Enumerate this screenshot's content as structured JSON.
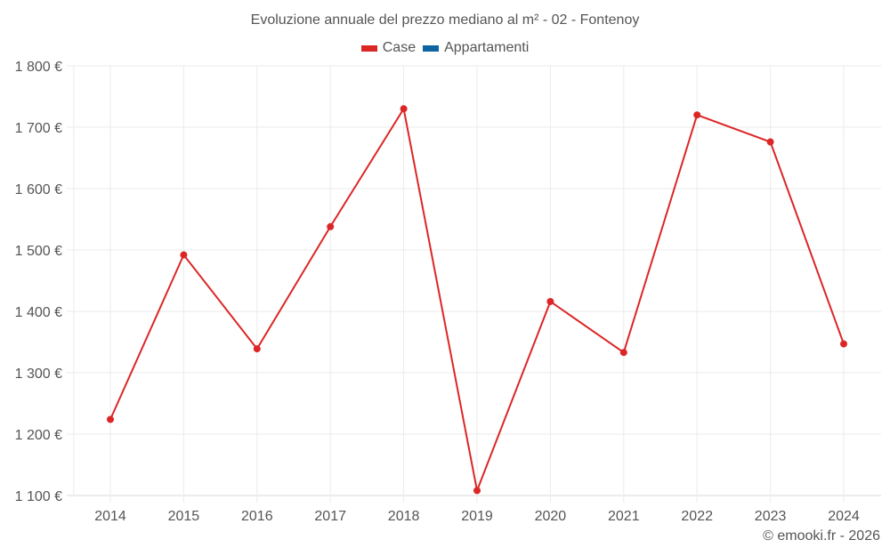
{
  "title": "Evoluzione annuale del prezzo mediano al m² - 02 - Fontenoy",
  "legend": [
    {
      "label": "Case",
      "color": "#dc2626"
    },
    {
      "label": "Appartamenti",
      "color": "#0e64a0"
    }
  ],
  "credit": "© emooki.fr - 2026",
  "colors": {
    "grid": "#ebebeb",
    "axis": "#d9d9d9",
    "text": "#555555",
    "series_case": "#dc2626"
  },
  "chart_data": {
    "type": "line",
    "title": "Evoluzione annuale del prezzo mediano al m² - 02 - Fontenoy",
    "xlabel": "",
    "ylabel": "",
    "categories": [
      "2014",
      "2015",
      "2016",
      "2017",
      "2018",
      "2019",
      "2020",
      "2021",
      "2022",
      "2023",
      "2024"
    ],
    "series": [
      {
        "name": "Case",
        "color": "#dc2626",
        "values": [
          1224,
          1492,
          1339,
          1538,
          1730,
          1108,
          1416,
          1333,
          1720,
          1676,
          1347
        ]
      },
      {
        "name": "Appartamenti",
        "color": "#0e64a0",
        "values": []
      }
    ],
    "ylim": [
      1100,
      1800
    ],
    "yticks": [
      1100,
      1200,
      1300,
      1400,
      1500,
      1600,
      1700,
      1800
    ],
    "ytick_labels": [
      "1 100 €",
      "1 200 €",
      "1 300 €",
      "1 400 €",
      "1 500 €",
      "1 600 €",
      "1 700 €",
      "1 800 €"
    ],
    "grid": true,
    "legend_position": "top"
  }
}
